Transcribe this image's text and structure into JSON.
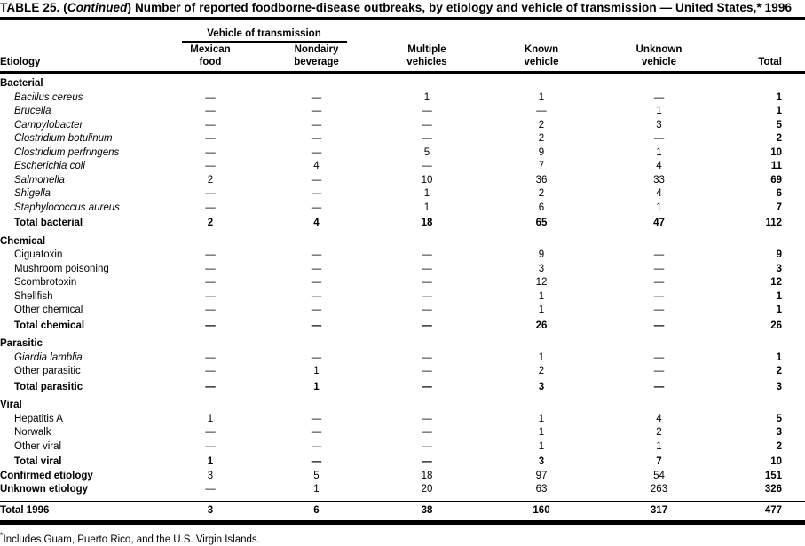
{
  "title": {
    "prefix": "TABLE 25. (",
    "continued": "Continued",
    "suffix": ") Number of reported foodborne-disease outbreaks, by etiology and vehicle of transmission — United States,* 1996"
  },
  "header": {
    "etiology": "Etiology",
    "vehicle_span": "Vehicle of transmission",
    "columns": [
      {
        "line1": "Mexican",
        "line2": "food"
      },
      {
        "line1": "Nondairy",
        "line2": "beverage"
      },
      {
        "line1": "Multiple",
        "line2": "vehicles"
      },
      {
        "line1": "Known",
        "line2": "vehicle"
      },
      {
        "line1": "Unknown",
        "line2": "vehicle"
      },
      {
        "line1": "",
        "line2": "Total"
      }
    ]
  },
  "table": {
    "sections": [
      {
        "name": "Bacterial",
        "rows": [
          {
            "label": "Bacillus cereus",
            "type": "item",
            "italic": true,
            "values": [
              "—",
              "—",
              "1",
              "1",
              "—",
              "1"
            ]
          },
          {
            "label": "Brucella",
            "type": "item",
            "italic": true,
            "values": [
              "—",
              "—",
              "—",
              "—",
              "1",
              "1"
            ]
          },
          {
            "label": "Campylobacter",
            "type": "item",
            "italic": true,
            "values": [
              "—",
              "—",
              "—",
              "2",
              "3",
              "5"
            ]
          },
          {
            "label": "Clostridium botulinum",
            "type": "item",
            "italic": true,
            "values": [
              "—",
              "—",
              "—",
              "2",
              "—",
              "2"
            ]
          },
          {
            "label": "Clostridium perfringens",
            "type": "item",
            "italic": true,
            "values": [
              "—",
              "—",
              "5",
              "9",
              "1",
              "10"
            ]
          },
          {
            "label": "Escherichia coli",
            "type": "item",
            "italic": true,
            "values": [
              "—",
              "4",
              "—",
              "7",
              "4",
              "11"
            ]
          },
          {
            "label": "Salmonella",
            "type": "item",
            "italic": true,
            "values": [
              "2",
              "—",
              "10",
              "36",
              "33",
              "69"
            ]
          },
          {
            "label": "Shigella",
            "type": "item",
            "italic": true,
            "values": [
              "—",
              "—",
              "1",
              "2",
              "4",
              "6"
            ]
          },
          {
            "label": "Staphylococcus aureus",
            "type": "item",
            "italic": true,
            "values": [
              "—",
              "—",
              "1",
              "6",
              "1",
              "7"
            ]
          },
          {
            "label": "Total bacterial",
            "type": "total",
            "italic": false,
            "values": [
              "2",
              "4",
              "18",
              "65",
              "47",
              "112"
            ]
          }
        ]
      },
      {
        "name": "Chemical",
        "rows": [
          {
            "label": "Ciguatoxin",
            "type": "item",
            "italic": false,
            "values": [
              "—",
              "—",
              "—",
              "9",
              "—",
              "9"
            ]
          },
          {
            "label": "Mushroom poisoning",
            "type": "item",
            "italic": false,
            "values": [
              "—",
              "—",
              "—",
              "3",
              "—",
              "3"
            ]
          },
          {
            "label": "Scombrotoxin",
            "type": "item",
            "italic": false,
            "values": [
              "—",
              "—",
              "—",
              "12",
              "—",
              "12"
            ]
          },
          {
            "label": "Shellfish",
            "type": "item",
            "italic": false,
            "values": [
              "—",
              "—",
              "—",
              "1",
              "—",
              "1"
            ]
          },
          {
            "label": "Other chemical",
            "type": "item",
            "italic": false,
            "values": [
              "—",
              "—",
              "—",
              "1",
              "—",
              "1"
            ]
          },
          {
            "label": "Total chemical",
            "type": "total",
            "italic": false,
            "values": [
              "—",
              "—",
              "—",
              "26",
              "—",
              "26"
            ]
          }
        ]
      },
      {
        "name": "Parasitic",
        "rows": [
          {
            "label": "Giardia lamblia",
            "type": "item",
            "italic": true,
            "values": [
              "—",
              "—",
              "—",
              "1",
              "—",
              "1"
            ]
          },
          {
            "label": "Other parasitic",
            "type": "item",
            "italic": false,
            "values": [
              "—",
              "1",
              "—",
              "2",
              "—",
              "2"
            ]
          },
          {
            "label": "Total parasitic",
            "type": "total",
            "italic": false,
            "values": [
              "—",
              "1",
              "—",
              "3",
              "—",
              "3"
            ]
          }
        ]
      },
      {
        "name": "Viral",
        "rows": [
          {
            "label": "Hepatitis A",
            "type": "item",
            "italic": false,
            "values": [
              "1",
              "—",
              "—",
              "1",
              "4",
              "5"
            ]
          },
          {
            "label": "Norwalk",
            "type": "item",
            "italic": false,
            "values": [
              "—",
              "—",
              "—",
              "1",
              "2",
              "3"
            ]
          },
          {
            "label": "Other viral",
            "type": "item",
            "italic": false,
            "values": [
              "—",
              "—",
              "—",
              "1",
              "1",
              "2"
            ]
          },
          {
            "label": "Total viral",
            "type": "total",
            "italic": false,
            "values": [
              "1",
              "—",
              "—",
              "3",
              "7",
              "10"
            ]
          }
        ]
      }
    ],
    "summary_rows": [
      {
        "label": "Confirmed etiology",
        "type": "summary",
        "values": [
          "3",
          "5",
          "18",
          "97",
          "54",
          "151"
        ]
      },
      {
        "label": "Unknown etiology",
        "type": "summary",
        "values": [
          "—",
          "1",
          "20",
          "63",
          "263",
          "326"
        ]
      },
      {
        "label": "Total 1996",
        "type": "grand",
        "values": [
          "3",
          "6",
          "38",
          "160",
          "317",
          "477"
        ]
      }
    ]
  },
  "footnote": {
    "marker": "*",
    "text": "Includes Guam, Puerto Rico, and the U.S. Virgin Islands."
  }
}
